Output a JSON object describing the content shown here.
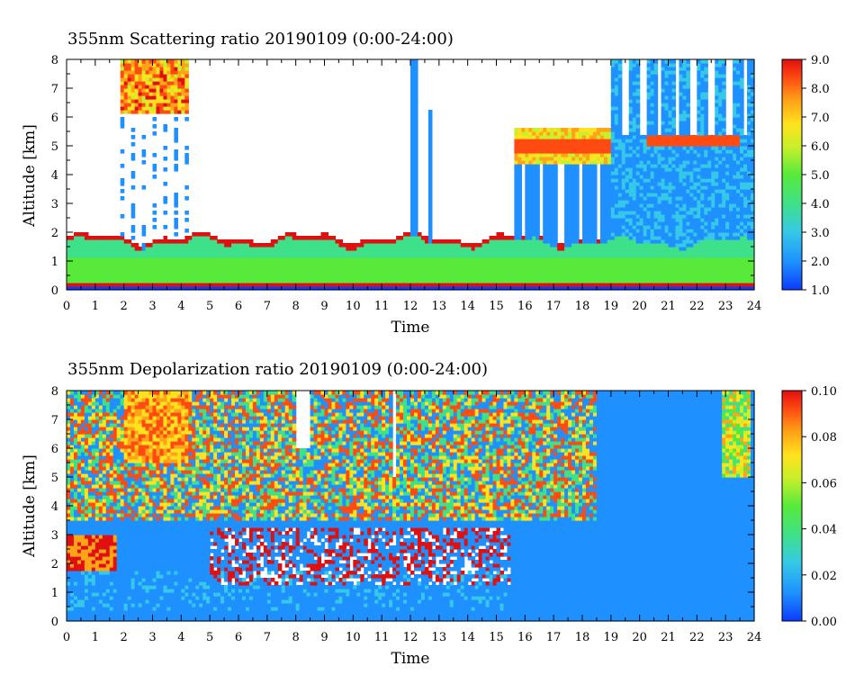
{
  "chart_data": [
    {
      "type": "heatmap",
      "title": "355nm Scattering ratio  20190109 (0:00-24:00)",
      "xlabel": "Time",
      "ylabel": "Altitude [km]",
      "xlim": [
        0,
        24
      ],
      "ylim": [
        0,
        8
      ],
      "x_ticks": [
        "0",
        "1",
        "2",
        "3",
        "4",
        "5",
        "6",
        "7",
        "8",
        "9",
        "10",
        "11",
        "12",
        "13",
        "14",
        "15",
        "16",
        "17",
        "18",
        "19",
        "20",
        "21",
        "22",
        "23",
        "24"
      ],
      "y_ticks": [
        "0",
        "1",
        "2",
        "3",
        "4",
        "5",
        "6",
        "7",
        "8"
      ],
      "colorbar": {
        "min": 1.0,
        "max": 9.0,
        "ticks": [
          "1.0",
          "2.0",
          "3.0",
          "4.0",
          "5.0",
          "6.0",
          "7.0",
          "8.0",
          "9.0"
        ]
      },
      "colormap": [
        "#0b3cff",
        "#1e90ff",
        "#35c8e8",
        "#3fe08a",
        "#58ea3a",
        "#c8f02a",
        "#ffe21e",
        "#ffa318",
        "#ff4a12",
        "#e01010"
      ],
      "features": [
        {
          "kind": "boundary_layer",
          "x": [
            0,
            24
          ],
          "y": [
            0.2,
            1.8
          ],
          "value": 5.0
        },
        {
          "kind": "cloud",
          "x": [
            1.9,
            4.3
          ],
          "y": [
            6.0,
            7.9
          ],
          "value": 8.0
        },
        {
          "kind": "cloud",
          "x": [
            15.6,
            19.0
          ],
          "y": [
            4.0,
            6.0
          ],
          "value": 7.0
        },
        {
          "kind": "cloud",
          "x": [
            19.0,
            24.0
          ],
          "y": [
            1.0,
            8.0
          ],
          "value": 2.5
        },
        {
          "kind": "cloud",
          "x": [
            20.2,
            23.5
          ],
          "y": [
            5.0,
            5.4
          ],
          "value": 8.0
        }
      ]
    },
    {
      "type": "heatmap",
      "title": "355nm Depolarization ratio  20190109 (0:00-24:00)",
      "xlabel": "Time",
      "ylabel": "Altitude [km]",
      "xlim": [
        0,
        24
      ],
      "ylim": [
        0,
        8
      ],
      "x_ticks": [
        "0",
        "1",
        "2",
        "3",
        "4",
        "5",
        "6",
        "7",
        "8",
        "9",
        "10",
        "11",
        "12",
        "13",
        "14",
        "15",
        "16",
        "17",
        "18",
        "19",
        "20",
        "21",
        "22",
        "23",
        "24"
      ],
      "y_ticks": [
        "0",
        "1",
        "2",
        "3",
        "4",
        "5",
        "6",
        "7",
        "8"
      ],
      "colorbar": {
        "min": 0.0,
        "max": 0.1,
        "ticks": [
          "0.00",
          "0.02",
          "0.04",
          "0.06",
          "0.08",
          "0.10"
        ]
      },
      "colormap": [
        "#0b3cff",
        "#1e90ff",
        "#35c8e8",
        "#3fe08a",
        "#58ea3a",
        "#c8f02a",
        "#ffe21e",
        "#ffa318",
        "#ff4a12",
        "#e01010"
      ],
      "features": [
        {
          "kind": "noisy_layer",
          "x": [
            0,
            18.5
          ],
          "y": [
            3.5,
            8.0
          ],
          "value": 0.06
        },
        {
          "kind": "aerosol",
          "x": [
            0,
            1.8
          ],
          "y": [
            1.8,
            3.0
          ],
          "value": 0.09
        },
        {
          "kind": "aerosol",
          "x": [
            5.0,
            15.5
          ],
          "y": [
            1.2,
            3.2
          ],
          "value": 0.09
        },
        {
          "kind": "cloud",
          "x": [
            2.0,
            4.3
          ],
          "y": [
            5.5,
            8.0
          ],
          "value": 0.07
        },
        {
          "kind": "background",
          "x": [
            18.5,
            24
          ],
          "y": [
            0,
            8
          ],
          "value": 0.015
        }
      ]
    }
  ]
}
